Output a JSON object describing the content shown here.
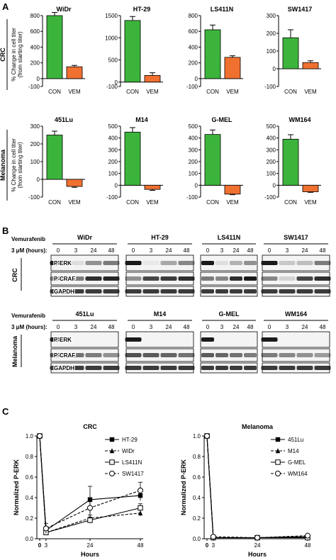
{
  "panel_labels": {
    "a": "A",
    "b": "B",
    "c": "C"
  },
  "panel_a": {
    "ylabel": "% Change in cell titer\n(from starting titer)",
    "groups": [
      {
        "name": "CRC",
        "charts": [
          {
            "title": "WiDr",
            "ylim": [
              -100,
              800
            ],
            "ticks": [
              -100,
              0,
              200,
              400,
              600,
              800
            ],
            "tick_labels": [
              "-100",
              "0",
              "200",
              "400",
              "600",
              "800"
            ],
            "categories": [
              "CON",
              "VEM"
            ],
            "values": [
              800,
              150
            ],
            "errors": [
              40,
              18
            ]
          },
          {
            "title": "HT-29",
            "ylim": [
              -100,
              1500
            ],
            "ticks": [
              -100,
              0,
              500,
              1000,
              1500
            ],
            "tick_labels": [
              "-100",
              "0",
              "500",
              "1000",
              "1500"
            ],
            "categories": [
              "CON",
              "VEM"
            ],
            "values": [
              1390,
              150
            ],
            "errors": [
              90,
              60
            ]
          },
          {
            "title": "LS411N",
            "ylim": [
              -100,
              800
            ],
            "ticks": [
              -100,
              0,
              200,
              400,
              600,
              800
            ],
            "tick_labels": [
              "-100",
              "0",
              "200",
              "400",
              "600",
              "800"
            ],
            "categories": [
              "CON",
              "VEM"
            ],
            "values": [
              620,
              270
            ],
            "errors": [
              60,
              20
            ]
          },
          {
            "title": "SW1417",
            "ylim": [
              -100,
              300
            ],
            "ticks": [
              -100,
              0,
              100,
              200,
              300
            ],
            "tick_labels": [
              "-100",
              "0",
              "100",
              "200",
              "300"
            ],
            "categories": [
              "CON",
              "VEM"
            ],
            "values": [
              175,
              35
            ],
            "errors": [
              45,
              10
            ]
          }
        ]
      },
      {
        "name": "Melanoma",
        "charts": [
          {
            "title": "451Lu",
            "ylim": [
              -100,
              300
            ],
            "ticks": [
              -100,
              0,
              100,
              200,
              300
            ],
            "tick_labels": [
              "-100",
              "0",
              "100",
              "200",
              "300"
            ],
            "categories": [
              "CON",
              "VEM"
            ],
            "values": [
              250,
              -40
            ],
            "errors": [
              22,
              5
            ]
          },
          {
            "title": "M14",
            "ylim": [
              -100,
              500
            ],
            "ticks": [
              -100,
              0,
              100,
              200,
              300,
              400,
              500
            ],
            "tick_labels": [
              "-100",
              "0",
              "100",
              "200",
              "300",
              "400",
              "500"
            ],
            "categories": [
              "CON",
              "VEM"
            ],
            "values": [
              450,
              -35
            ],
            "errors": [
              38,
              8
            ]
          },
          {
            "title": "G-MEL",
            "ylim": [
              -100,
              500
            ],
            "ticks": [
              -100,
              0,
              100,
              200,
              300,
              400,
              500
            ],
            "tick_labels": [
              "-100",
              "0",
              "100",
              "200",
              "300",
              "400",
              "500"
            ],
            "categories": [
              "CON",
              "VEM"
            ],
            "values": [
              430,
              -75
            ],
            "errors": [
              38,
              5
            ]
          },
          {
            "title": "WM164",
            "ylim": [
              -100,
              500
            ],
            "ticks": [
              -100,
              0,
              100,
              200,
              300,
              400,
              500
            ],
            "tick_labels": [
              "-100",
              "0",
              "100",
              "200",
              "300",
              "400",
              "500"
            ],
            "categories": [
              "CON",
              "VEM"
            ],
            "values": [
              390,
              -55
            ],
            "errors": [
              38,
              5
            ]
          }
        ]
      }
    ]
  },
  "panel_b": {
    "drug_label": "Vemurafenib",
    "dose_label": "3 μM (hours):",
    "times": [
      "0",
      "3",
      "24",
      "48"
    ],
    "groups": [
      {
        "name": "CRC",
        "lines": [
          "WiDr",
          "HT-29",
          "LS411N",
          "SW1417"
        ],
        "rows": [
          "P-ERK",
          "P-CRAF",
          "GAPDH"
        ],
        "intensity": {
          "P-ERK": [
            [
              1.0,
              0.1,
              0.45,
              0.55
            ],
            [
              1.0,
              0.05,
              0.35,
              0.5
            ],
            [
              1.0,
              0.1,
              0.3,
              0.45
            ],
            [
              1.0,
              0.2,
              0.25,
              0.55
            ]
          ],
          "P-CRAF": [
            [
              0.5,
              0.55,
              0.9,
              0.95
            ],
            [
              0.45,
              0.8,
              0.85,
              0.9
            ],
            [
              0.55,
              0.5,
              0.9,
              1.0
            ],
            [
              0.5,
              0.15,
              0.8,
              0.9
            ]
          ],
          "GAPDH": [
            [
              0.85,
              0.85,
              0.85,
              0.85
            ],
            [
              0.85,
              0.85,
              0.85,
              0.85
            ],
            [
              0.85,
              0.85,
              0.85,
              0.85
            ],
            [
              0.85,
              0.85,
              0.85,
              0.85
            ]
          ]
        }
      },
      {
        "name": "Melanoma",
        "lines": [
          "451Lu",
          "M14",
          "G-MEL",
          "WM164"
        ],
        "rows": [
          "P-ERK",
          "P-CRAF",
          "GAPDH"
        ],
        "intensity": {
          "P-ERK": [
            [
              1.0,
              0.0,
              0.0,
              0.0
            ],
            [
              1.0,
              0.0,
              0.0,
              0.0
            ],
            [
              1.0,
              0.0,
              0.0,
              0.0
            ],
            [
              1.0,
              0.0,
              0.0,
              0.0
            ]
          ],
          "P-CRAF": [
            [
              0.7,
              0.6,
              0.55,
              0.45
            ],
            [
              0.75,
              0.7,
              0.65,
              0.6
            ],
            [
              0.7,
              0.65,
              0.6,
              0.55
            ],
            [
              0.55,
              0.5,
              0.45,
              0.4
            ]
          ],
          "GAPDH": [
            [
              0.85,
              0.85,
              0.85,
              0.85
            ],
            [
              0.85,
              0.85,
              0.85,
              0.85
            ],
            [
              0.85,
              0.85,
              0.85,
              0.85
            ],
            [
              0.85,
              0.85,
              0.85,
              0.85
            ]
          ]
        }
      }
    ]
  },
  "panel_c": {
    "charts": [
      {
        "title": "CRC",
        "type": "line",
        "xlabel": "Hours",
        "ylabel": "Normalized P-ERK",
        "x": [
          0,
          3,
          24,
          48
        ],
        "x_ticks": [
          0,
          3,
          24,
          48
        ],
        "x_tick_labels": [
          "0",
          "3",
          "24",
          "48"
        ],
        "ylim": [
          0.0,
          1.0
        ],
        "y_ticks": [
          0.0,
          0.2,
          0.4,
          0.6,
          0.8,
          1.0
        ],
        "y_tick_labels": [
          "0.0",
          "0.2",
          "0.4",
          "0.6",
          "0.8",
          "1.0"
        ],
        "series": [
          {
            "name": "HT-29",
            "marker": "square-filled",
            "dashed": false,
            "values": [
              1.0,
              0.08,
              0.38,
              0.42
            ],
            "errors": [
              0,
              0.02,
              0.13,
              0.05
            ]
          },
          {
            "name": "WiDr",
            "marker": "triangle-filled",
            "dashed": true,
            "values": [
              1.0,
              0.06,
              0.2,
              0.25
            ],
            "errors": [
              0,
              0.02,
              0.03,
              0.03
            ]
          },
          {
            "name": "LS411N",
            "marker": "square-open",
            "dashed": false,
            "values": [
              1.0,
              0.06,
              0.18,
              0.3
            ],
            "errors": [
              0,
              0.02,
              0.03,
              0.04
            ]
          },
          {
            "name": "SW1417",
            "marker": "circle-open",
            "dashed": true,
            "values": [
              1.0,
              0.1,
              0.3,
              0.47
            ],
            "errors": [
              0,
              0.05,
              0.1,
              0.08
            ]
          }
        ]
      },
      {
        "title": "Melanoma",
        "type": "line",
        "xlabel": "Hours",
        "ylabel": "Normalized P-ERK",
        "x": [
          0,
          3,
          24,
          48
        ],
        "x_ticks": [
          0,
          3,
          24,
          48
        ],
        "x_tick_labels": [
          "0",
          "3",
          "24",
          "48"
        ],
        "ylim": [
          0.0,
          1.0
        ],
        "y_ticks": [
          0.0,
          0.2,
          0.4,
          0.6,
          0.8,
          1.0
        ],
        "y_tick_labels": [
          "0.0",
          "0.2",
          "0.4",
          "0.6",
          "0.8",
          "1.0"
        ],
        "series": [
          {
            "name": "451Lu",
            "marker": "square-filled",
            "dashed": false,
            "values": [
              1.0,
              0.01,
              0.01,
              0.02
            ],
            "errors": [
              0,
              0,
              0,
              0
            ]
          },
          {
            "name": "M14",
            "marker": "triangle-filled",
            "dashed": true,
            "values": [
              1.0,
              0.01,
              0.01,
              0.02
            ],
            "errors": [
              0,
              0,
              0,
              0
            ]
          },
          {
            "name": "G-MEL",
            "marker": "square-open",
            "dashed": false,
            "values": [
              1.0,
              0.01,
              0.01,
              0.01
            ],
            "errors": [
              0,
              0,
              0,
              0
            ]
          },
          {
            "name": "WM164",
            "marker": "circle-open",
            "dashed": true,
            "values": [
              1.0,
              0.02,
              0.01,
              0.03
            ],
            "errors": [
              0,
              0,
              0,
              0
            ]
          }
        ]
      }
    ]
  },
  "colors": {
    "con": "#3cb43c",
    "vem": "#f07030",
    "blot_bg": "#f4f4f4",
    "band": "#1a1a1a"
  }
}
